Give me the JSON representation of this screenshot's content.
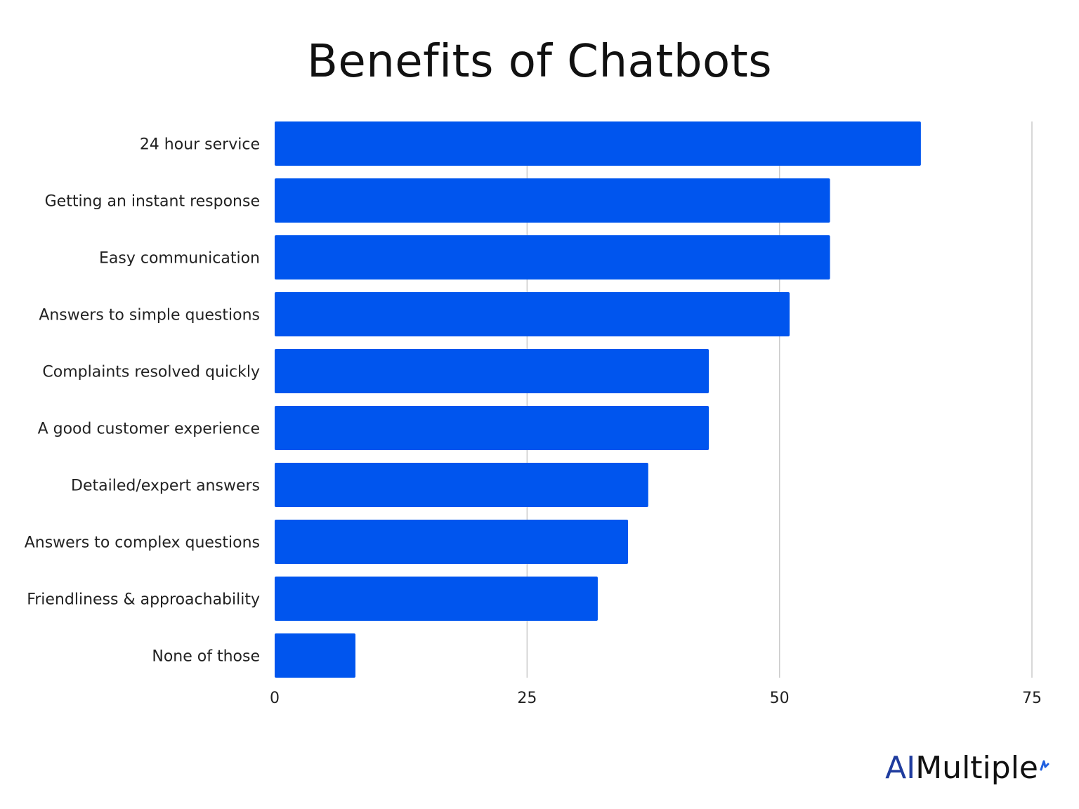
{
  "chart_data": {
    "type": "bar",
    "orientation": "horizontal",
    "title": "Benefits of Chatbots",
    "xlabel": "",
    "ylabel": "",
    "categories": [
      "24 hour service",
      "Getting an instant response",
      "Easy communication",
      "Answers to simple questions",
      "Complaints resolved quickly",
      "A good customer experience",
      "Detailed/expert answers",
      "Answers to complex questions",
      "Friendliness & approachability",
      "None of those"
    ],
    "values": [
      64,
      55,
      55,
      51,
      43,
      43,
      37,
      35,
      32,
      8
    ],
    "xlim": [
      0,
      75
    ],
    "xticks": [
      "0",
      "25",
      "50",
      "75"
    ],
    "grid": true,
    "bar_color": "#0055ee",
    "grid_color": "#cccccc"
  },
  "branding": {
    "logo_part1": "AI",
    "logo_part2": "Multiple"
  }
}
